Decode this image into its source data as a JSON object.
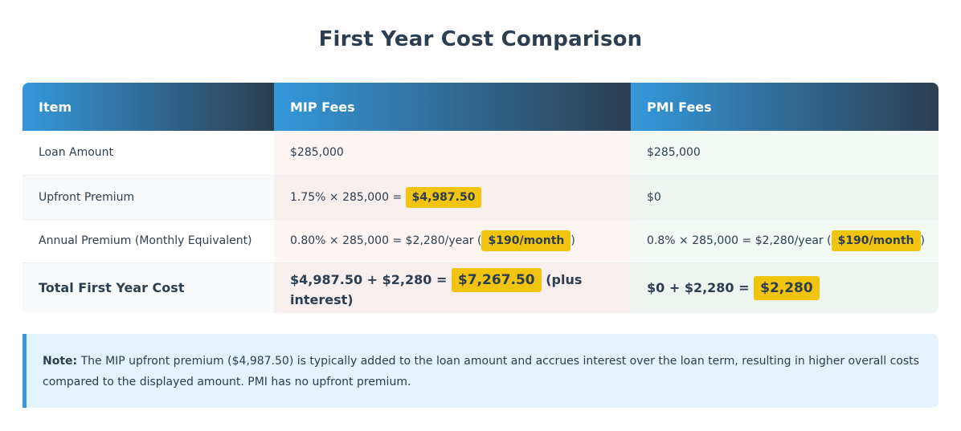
{
  "title": "First Year Cost Comparison",
  "colors": {
    "header_start": "#3498db",
    "header_end": "#2c3e50",
    "highlight": "#f1c40f",
    "note_border": "#3498db",
    "note_bg": "#e3f2fc"
  },
  "table": {
    "headers": [
      "Item",
      "MIP Fees",
      "PMI Fees"
    ],
    "rows": [
      {
        "item": "Loan Amount",
        "mip": {
          "text": "$285,000"
        },
        "pmi": {
          "text": "$285,000"
        }
      },
      {
        "item": "Upfront Premium",
        "mip": {
          "pre": "1.75% × 285,000 = ",
          "highlight": "$4,987.50"
        },
        "pmi": {
          "text": "$0"
        }
      },
      {
        "item": "Annual Premium (Monthly Equivalent)",
        "mip": {
          "pre": "0.80% × 285,000 = $2,280/year (",
          "highlight": "$190/month",
          "post": ")"
        },
        "pmi": {
          "pre": "0.8% × 285,000 = $2,280/year (",
          "highlight": "$190/month",
          "post": ")"
        }
      }
    ],
    "total": {
      "item": "Total First Year Cost",
      "mip": {
        "pre": "$4,987.50 + $2,280 = ",
        "highlight": "$7,267.50",
        "post": " (plus interest)"
      },
      "pmi": {
        "pre": "$0 + $2,280 = ",
        "highlight": "$2,280"
      }
    }
  },
  "note": {
    "label": "Note:",
    "text": " The MIP upfront premium ($4,987.50) is typically added to the loan amount and accrues interest over the loan term, resulting in higher overall costs compared to the displayed amount. PMI has no upfront premium."
  }
}
